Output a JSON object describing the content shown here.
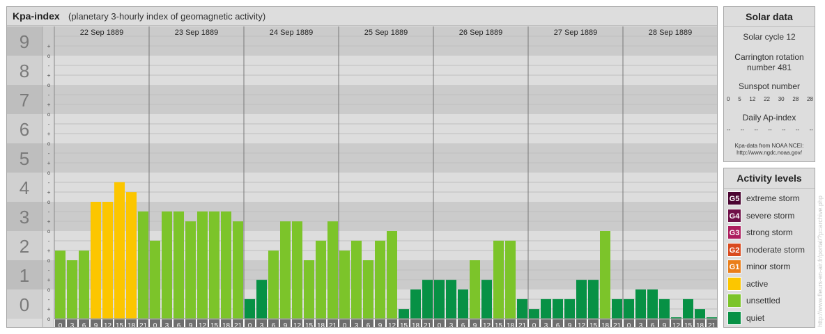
{
  "header": {
    "title": "Kpa-index",
    "subtitle": "(planetary 3-hourly index of geomagnetic activity)"
  },
  "chart_data": {
    "type": "bar",
    "y_levels": [
      "0",
      "1",
      "2",
      "3",
      "4",
      "5",
      "6",
      "7",
      "8",
      "9"
    ],
    "sub_labels": [
      "-",
      "o",
      "+"
    ],
    "dates": [
      "22 Sep 1889",
      "23 Sep 1889",
      "24 Sep 1889",
      "25 Sep 1889",
      "26 Sep 1889",
      "27 Sep 1889",
      "28 Sep 1889"
    ],
    "hours_top": [
      "0",
      "3",
      "6",
      "9",
      "12",
      "15",
      "18",
      "21"
    ],
    "hours_bottom": [
      "3",
      "6",
      "9",
      "12",
      "15",
      "18",
      "21",
      "24"
    ],
    "values": [
      [
        2.33,
        2.0,
        2.33,
        4.0,
        4.0,
        4.67,
        4.33,
        3.67
      ],
      [
        2.67,
        3.67,
        3.67,
        3.33,
        3.67,
        3.67,
        3.67,
        3.33
      ],
      [
        0.67,
        1.33,
        2.33,
        3.33,
        3.33,
        2.0,
        2.67,
        3.33
      ],
      [
        2.33,
        2.67,
        2.0,
        2.67,
        3.0,
        0.33,
        1.0,
        1.33
      ],
      [
        1.33,
        1.33,
        1.0,
        2.0,
        1.33,
        2.67,
        2.67,
        0.67
      ],
      [
        0.33,
        0.67,
        0.67,
        0.67,
        1.33,
        1.33,
        3.0,
        0.67
      ],
      [
        0.67,
        1.0,
        1.0,
        0.67,
        0.0,
        0.67,
        0.33,
        0.0
      ]
    ],
    "categories": [
      "quiet",
      "unsettled",
      "active",
      "minor storm",
      "moderate storm",
      "strong storm",
      "severe storm",
      "extreme storm"
    ],
    "colors": {
      "quiet": "#079145",
      "unsettled": "#7cc42a",
      "active": "#fcc600",
      "minor storm": "#ea7e1a",
      "moderate storm": "#d94a1e",
      "strong storm": "#ad1d5e",
      "severe storm": "#6f1048",
      "extreme storm": "#4a0431"
    }
  },
  "solar": {
    "title": "Solar data",
    "solar_cycle": "Solar cycle 12",
    "carrington_1": "Carrington rotation",
    "carrington_2": "number 481",
    "sunspot_label": "Sunspot number",
    "sunspot_values": [
      "0",
      "5",
      "12",
      "22",
      "30",
      "28",
      "28"
    ],
    "ap_label": "Daily Ap-index",
    "ap_values": [
      "--",
      "--",
      "--",
      "--",
      "--",
      "--",
      "--"
    ],
    "source_1": "Kpa-data from NOAA NCEI:",
    "source_2": "http://www.ngdc.noaa.gov/"
  },
  "activity": {
    "title": "Activity levels",
    "levels": [
      {
        "code": "G5",
        "label": "extreme storm",
        "color": "#4a0431"
      },
      {
        "code": "G4",
        "label": "severe storm",
        "color": "#6f1048"
      },
      {
        "code": "G3",
        "label": "strong storm",
        "color": "#ad1d5e"
      },
      {
        "code": "G2",
        "label": "moderate storm",
        "color": "#d94a1e"
      },
      {
        "code": "G1",
        "label": "minor storm",
        "color": "#ea7e1a"
      },
      {
        "code": "",
        "label": "active",
        "color": "#fcc600"
      },
      {
        "code": "",
        "label": "unsettled",
        "color": "#7cc42a"
      },
      {
        "code": "",
        "label": "quiet",
        "color": "#079145"
      }
    ]
  },
  "watermark": "http://www.fleurs-en-air.fr/portal/?p=archive.php"
}
